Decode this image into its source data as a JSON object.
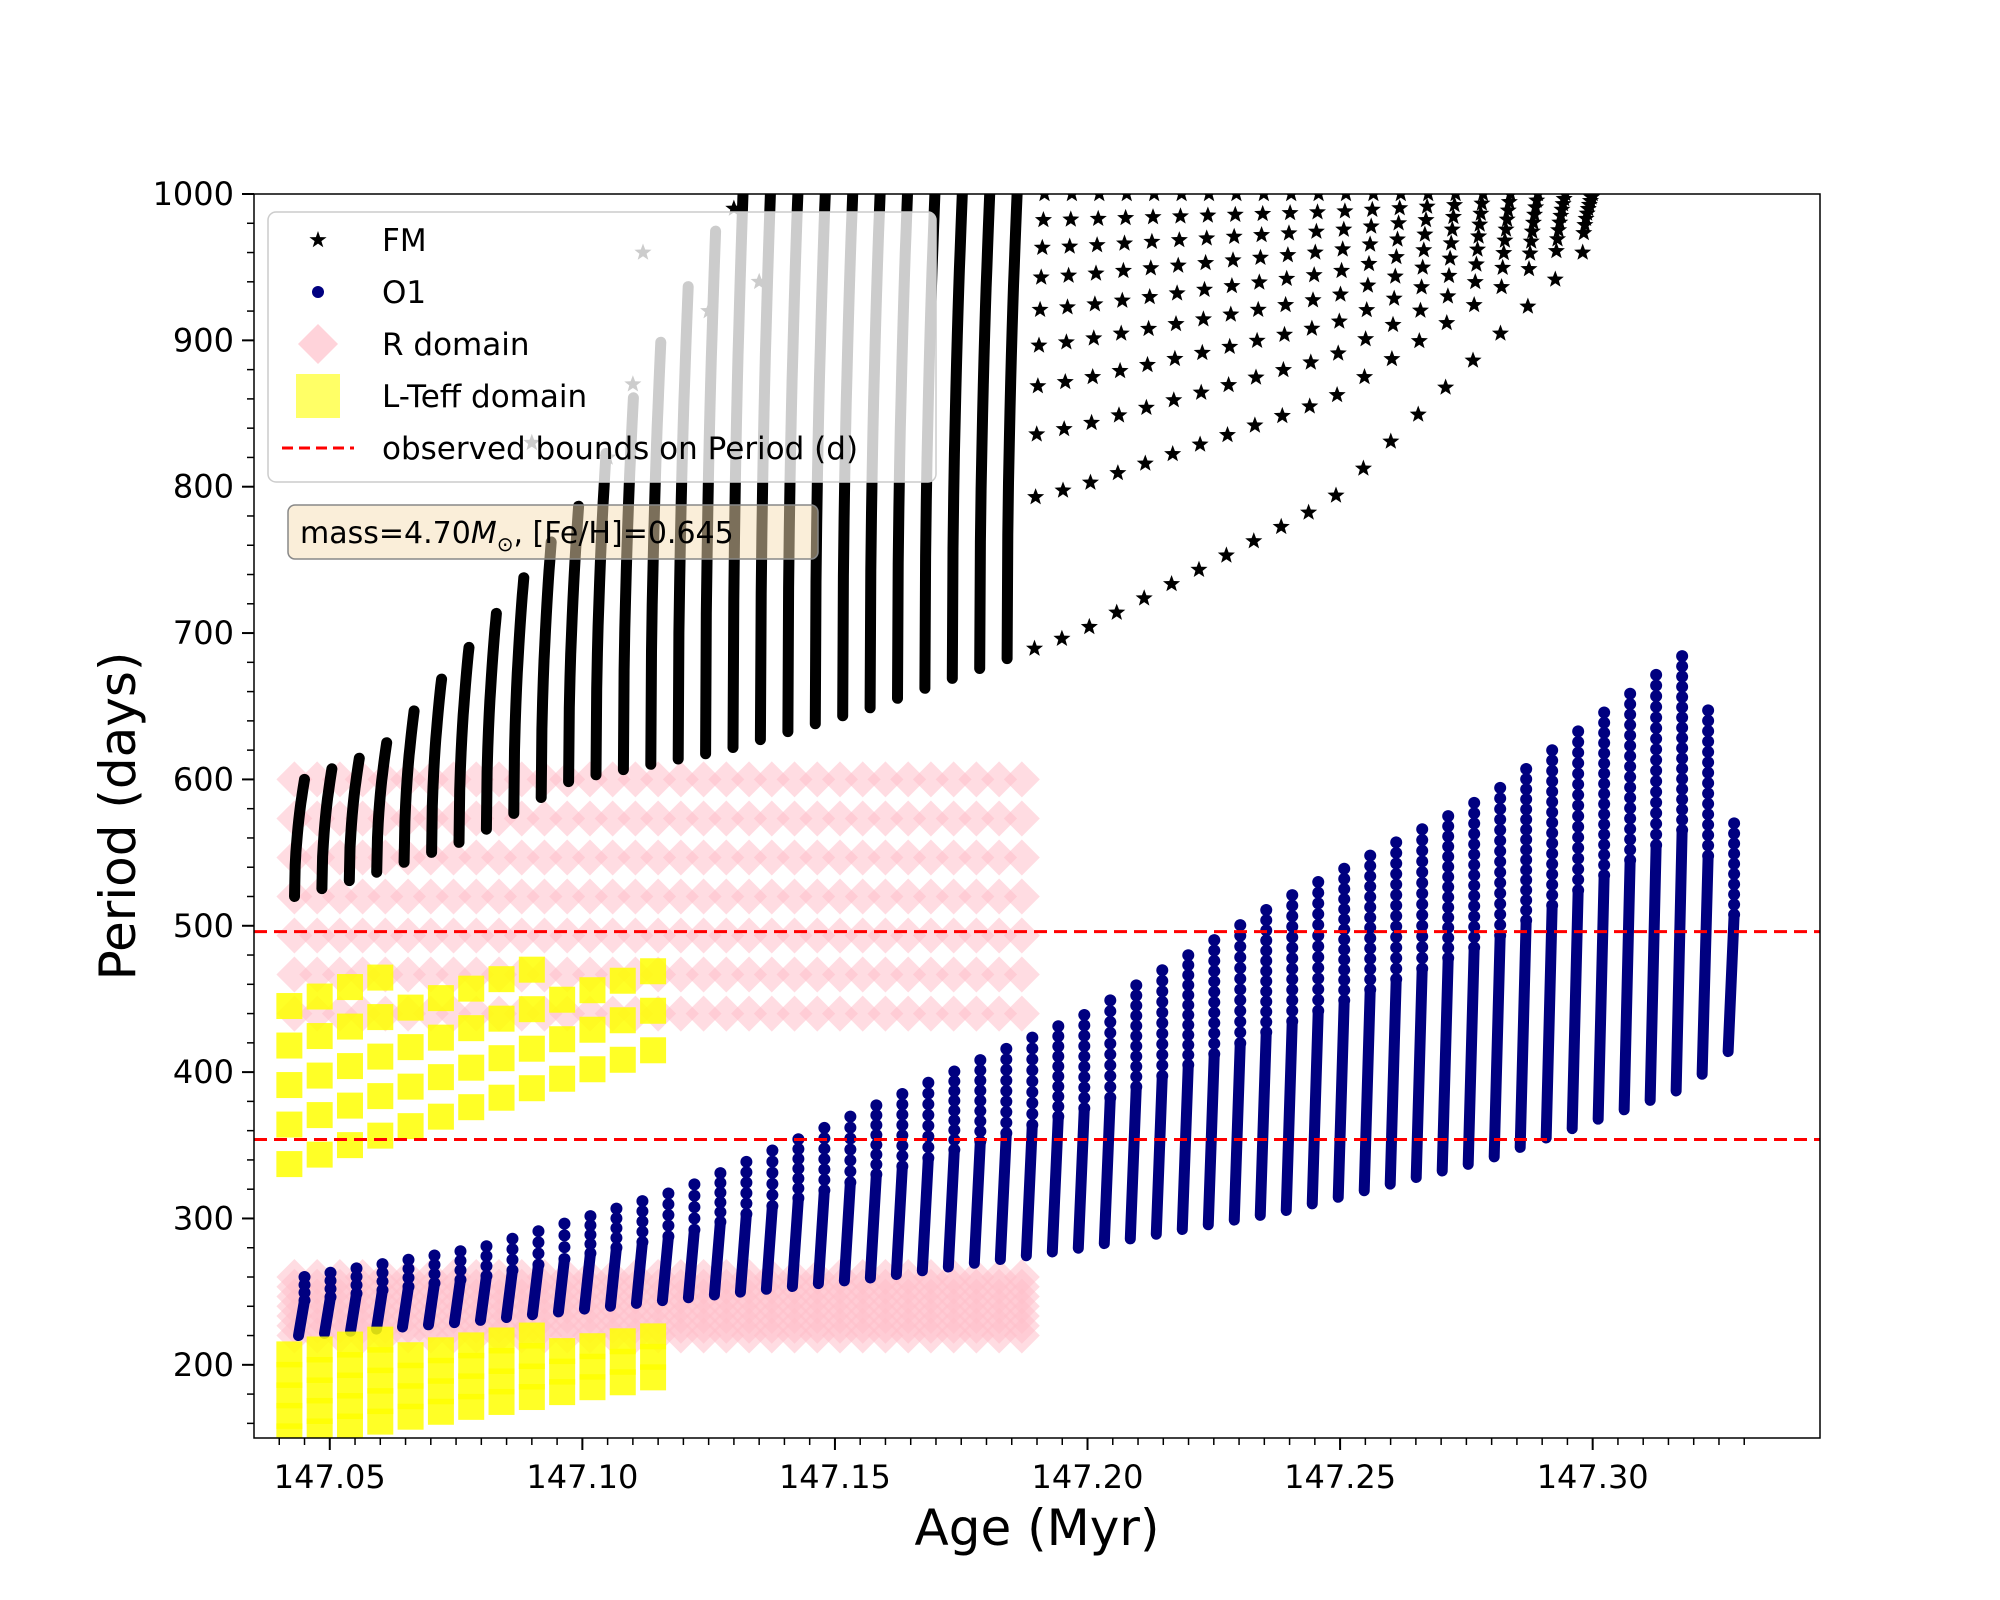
{
  "chart_data": {
    "type": "scatter",
    "title": "",
    "xlabel": "Age (Myr)",
    "ylabel": "Period (days)",
    "xlim": [
      147.035,
      147.345
    ],
    "ylim": [
      150,
      1000
    ],
    "x_ticks": [
      147.05,
      147.1,
      147.15,
      147.2,
      147.25,
      147.3
    ],
    "x_tick_labels": [
      "147.05",
      "147.10",
      "147.15",
      "147.20",
      "147.25",
      "147.30"
    ],
    "y_ticks": [
      200,
      300,
      400,
      500,
      600,
      700,
      800,
      900,
      1000
    ],
    "y_tick_labels": [
      "200",
      "300",
      "400",
      "500",
      "600",
      "700",
      "800",
      "900",
      "1000"
    ],
    "grid": false,
    "legend_position": "top-left",
    "legend": [
      {
        "label": "FM",
        "marker": "star",
        "color": "#000000"
      },
      {
        "label": "O1",
        "marker": "circle",
        "color": "#000080"
      },
      {
        "label": "R domain",
        "marker": "diamond",
        "color": "#ffc0cb"
      },
      {
        "label": "L-Teff domain",
        "marker": "square",
        "color": "#ffff00"
      },
      {
        "label": "observed bounds on Period (d)",
        "marker": "dashed-line",
        "color": "#ff0000"
      }
    ],
    "annotation": {
      "prefix": "mass=4.70",
      "mass_symbol": "M",
      "sub": "⊙",
      "suffix": ", [Fe/H]=0.645"
    },
    "hlines": [
      {
        "name": "upper-bound",
        "y": 496,
        "color": "#ff0000",
        "style": "dashed"
      },
      {
        "name": "lower-bound",
        "y": 354,
        "color": "#ff0000",
        "style": "dashed"
      }
    ],
    "series": [
      {
        "name": "FM",
        "marker": "star",
        "color": "#000000",
        "description": "Sawtooth pulsation-period tracks; each track rises with age and the overall envelope climbs from ~600 d to >1000 d",
        "envelope_x": [
          147.045,
          147.06,
          147.08,
          147.1,
          147.13,
          147.16,
          147.2,
          147.25,
          147.3
        ],
        "envelope_y_min": [
          520,
          535,
          560,
          600,
          620,
          650,
          700,
          790,
          960
        ],
        "envelope_y_max": [
          600,
          620,
          700,
          790,
          1000,
          1000,
          1000,
          1000,
          1000
        ]
      },
      {
        "name": "O1",
        "marker": "circle",
        "color": "#000080",
        "description": "Sawtooth tracks increasing linearly with age",
        "x": [
          147.045,
          147.08,
          147.12,
          147.16,
          147.2,
          147.24,
          147.28,
          147.32,
          147.33
        ],
        "y_min": [
          220,
          230,
          245,
          260,
          280,
          305,
          340,
          390,
          420
        ],
        "y_max": [
          260,
          280,
          320,
          380,
          440,
          520,
          590,
          690,
          540
        ]
      },
      {
        "name": "R domain",
        "marker": "diamond",
        "color": "#ffc0cb",
        "bands": [
          {
            "x": [
              147.04,
              147.19
            ],
            "y": [
              440,
              600
            ],
            "note": "FM band"
          },
          {
            "x": [
              147.04,
              147.19
            ],
            "y": [
              220,
              260
            ],
            "note": "O1 band"
          }
        ]
      },
      {
        "name": "L-Teff domain",
        "marker": "square",
        "color": "#ffff00",
        "bands": [
          {
            "x": [
              147.04,
              147.115
            ],
            "y": [
              335,
              470
            ],
            "note": "FM band"
          },
          {
            "x": [
              147.04,
              147.115
            ],
            "y": [
              150,
              220
            ],
            "note": "O1 band"
          }
        ]
      }
    ]
  }
}
